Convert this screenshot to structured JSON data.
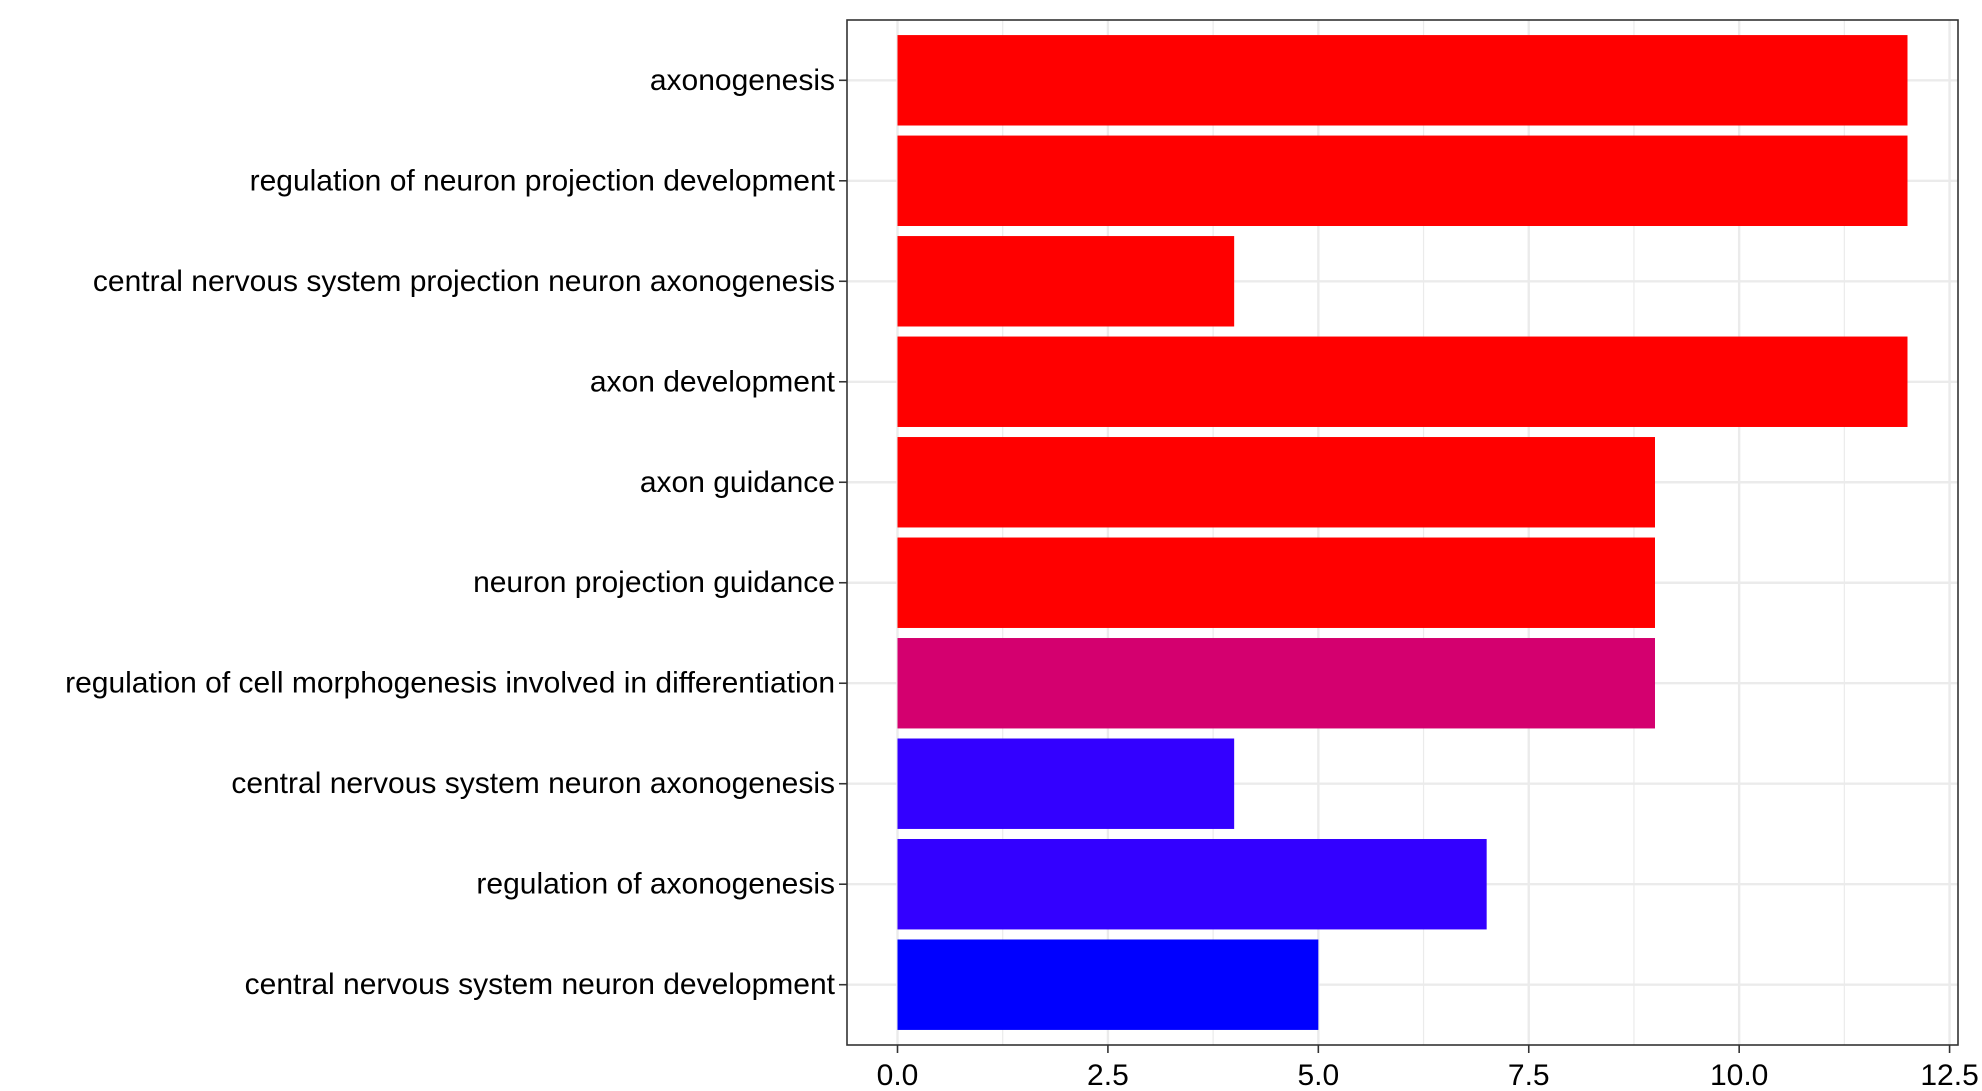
{
  "chart_data": {
    "type": "bar",
    "orientation": "horizontal",
    "categories": [
      "axonogenesis",
      "regulation of neuron projection development",
      "central nervous system projection neuron axonogenesis",
      "axon development",
      "axon guidance",
      "neuron projection guidance",
      "regulation of cell morphogenesis involved in differentiation",
      "central nervous system neuron axonogenesis",
      "regulation of axonogenesis",
      "central nervous system neuron development"
    ],
    "values": [
      12,
      12,
      4,
      12,
      9,
      9,
      9,
      4,
      7,
      5
    ],
    "bar_colors": [
      "#FF0000",
      "#FF0000",
      "#FF0000",
      "#FF0000",
      "#FF0000",
      "#FF0000",
      "#D4006F",
      "#3300FF",
      "#3300FF",
      "#0000FF"
    ],
    "xlim": [
      -0.6,
      12.6
    ],
    "x_ticks": [
      "0.0",
      "2.5",
      "5.0",
      "7.5",
      "10.0",
      "12.5"
    ],
    "x_tick_values": [
      0,
      2.5,
      5,
      7.5,
      10,
      12.5
    ],
    "grid": true,
    "legend": "none"
  }
}
